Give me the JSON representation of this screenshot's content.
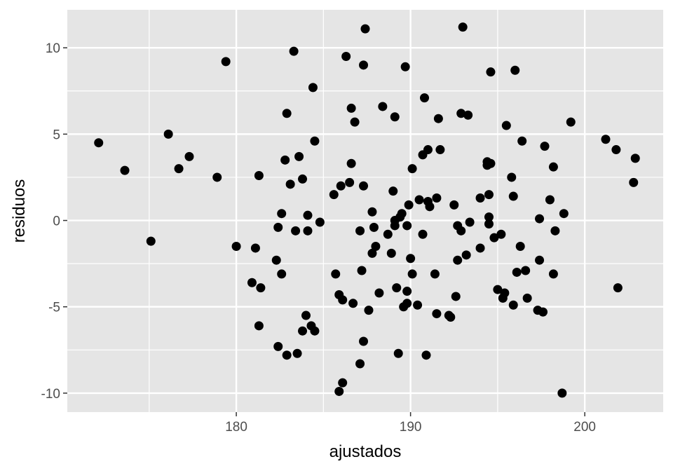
{
  "chart_data": {
    "type": "scatter",
    "title": "",
    "xlabel": "ajustados",
    "ylabel": "residuos",
    "xlim": [
      170.3,
      204.5
    ],
    "ylim": [
      -11.1,
      12.2
    ],
    "x_ticks": [
      180,
      190,
      200
    ],
    "x_tick_labels": [
      "180",
      "190",
      "200"
    ],
    "y_ticks": [
      -10,
      -5,
      0,
      5,
      10
    ],
    "y_tick_labels": [
      "-10",
      "-5",
      "0",
      "5",
      "10"
    ],
    "x_minor_ticks": [
      175,
      185,
      195
    ],
    "y_minor_ticks": [
      -7.5,
      -2.5,
      2.5,
      7.5
    ],
    "grid": true,
    "colors": {
      "panel": "#e5e5e5",
      "grid": "#ffffff",
      "point": "#000000"
    },
    "points": [
      [
        172.1,
        4.5
      ],
      [
        173.6,
        2.9
      ],
      [
        175.1,
        -1.2
      ],
      [
        176.1,
        5.0
      ],
      [
        176.7,
        3.0
      ],
      [
        177.3,
        3.7
      ],
      [
        178.9,
        2.5
      ],
      [
        179.4,
        9.2
      ],
      [
        180.0,
        -1.5
      ],
      [
        180.9,
        -3.6
      ],
      [
        181.1,
        -1.6
      ],
      [
        181.3,
        2.6
      ],
      [
        181.3,
        -6.1
      ],
      [
        181.4,
        -3.9
      ],
      [
        182.3,
        -2.3
      ],
      [
        182.4,
        -0.4
      ],
      [
        182.4,
        -7.3
      ],
      [
        182.6,
        0.4
      ],
      [
        182.6,
        -3.1
      ],
      [
        182.8,
        3.5
      ],
      [
        182.9,
        6.2
      ],
      [
        182.9,
        -7.8
      ],
      [
        183.1,
        2.1
      ],
      [
        183.3,
        9.8
      ],
      [
        183.4,
        -0.6
      ],
      [
        183.5,
        -7.7
      ],
      [
        183.6,
        3.7
      ],
      [
        183.8,
        2.4
      ],
      [
        183.8,
        -6.4
      ],
      [
        184.0,
        -5.5
      ],
      [
        184.1,
        -0.6
      ],
      [
        184.1,
        0.3
      ],
      [
        184.3,
        -6.1
      ],
      [
        184.4,
        7.7
      ],
      [
        184.5,
        -6.4
      ],
      [
        184.5,
        4.6
      ],
      [
        184.8,
        -0.1
      ],
      [
        185.6,
        1.5
      ],
      [
        185.7,
        -3.1
      ],
      [
        185.9,
        -4.3
      ],
      [
        185.9,
        -9.9
      ],
      [
        186.0,
        2.0
      ],
      [
        186.1,
        -4.6
      ],
      [
        186.1,
        -9.4
      ],
      [
        186.3,
        9.5
      ],
      [
        186.5,
        2.2
      ],
      [
        186.6,
        3.3
      ],
      [
        186.6,
        6.5
      ],
      [
        186.7,
        -4.8
      ],
      [
        186.8,
        5.7
      ],
      [
        187.1,
        -8.3
      ],
      [
        187.1,
        -0.6
      ],
      [
        187.2,
        -2.9
      ],
      [
        187.3,
        2.0
      ],
      [
        187.3,
        -7.0
      ],
      [
        187.3,
        9.0
      ],
      [
        187.4,
        11.1
      ],
      [
        187.6,
        -5.2
      ],
      [
        187.8,
        -1.9
      ],
      [
        187.8,
        0.5
      ],
      [
        187.9,
        -0.4
      ],
      [
        188.0,
        -1.5
      ],
      [
        188.2,
        -4.2
      ],
      [
        188.4,
        6.6
      ],
      [
        188.7,
        -0.8
      ],
      [
        188.9,
        -1.9
      ],
      [
        189.0,
        1.7
      ],
      [
        189.1,
        0.0
      ],
      [
        189.1,
        -0.3
      ],
      [
        189.1,
        6.0
      ],
      [
        189.2,
        -3.9
      ],
      [
        189.3,
        -7.7
      ],
      [
        189.4,
        0.2
      ],
      [
        189.5,
        0.4
      ],
      [
        189.6,
        -5.0
      ],
      [
        189.7,
        8.9
      ],
      [
        189.8,
        -4.1
      ],
      [
        189.8,
        -4.8
      ],
      [
        189.8,
        -0.3
      ],
      [
        189.9,
        0.9
      ],
      [
        190.0,
        -2.2
      ],
      [
        190.1,
        3.0
      ],
      [
        190.1,
        -3.1
      ],
      [
        190.4,
        -4.9
      ],
      [
        190.5,
        1.2
      ],
      [
        190.7,
        3.8
      ],
      [
        190.7,
        -0.8
      ],
      [
        190.8,
        7.1
      ],
      [
        190.9,
        -7.8
      ],
      [
        191.0,
        1.1
      ],
      [
        191.0,
        4.1
      ],
      [
        191.1,
        0.8
      ],
      [
        191.4,
        -3.1
      ],
      [
        191.5,
        1.3
      ],
      [
        191.5,
        -5.4
      ],
      [
        191.6,
        5.9
      ],
      [
        191.7,
        4.1
      ],
      [
        192.2,
        -5.5
      ],
      [
        192.3,
        -5.6
      ],
      [
        192.5,
        0.9
      ],
      [
        192.6,
        -4.4
      ],
      [
        192.7,
        -2.3
      ],
      [
        192.7,
        -0.3
      ],
      [
        192.9,
        6.2
      ],
      [
        192.9,
        -0.6
      ],
      [
        193.0,
        11.2
      ],
      [
        193.2,
        -2.0
      ],
      [
        193.3,
        6.1
      ],
      [
        193.4,
        -0.1
      ],
      [
        194.0,
        1.3
      ],
      [
        194.0,
        -1.6
      ],
      [
        194.4,
        3.2
      ],
      [
        194.4,
        3.4
      ],
      [
        194.5,
        0.2
      ],
      [
        194.5,
        -0.2
      ],
      [
        194.5,
        1.5
      ],
      [
        194.6,
        3.3
      ],
      [
        194.6,
        8.6
      ],
      [
        194.8,
        -1.0
      ],
      [
        195.0,
        -4.0
      ],
      [
        195.2,
        -0.8
      ],
      [
        195.3,
        -4.5
      ],
      [
        195.4,
        -4.2
      ],
      [
        195.5,
        5.5
      ],
      [
        195.8,
        2.5
      ],
      [
        195.9,
        1.4
      ],
      [
        195.9,
        -4.9
      ],
      [
        196.0,
        8.7
      ],
      [
        196.1,
        -3.0
      ],
      [
        196.3,
        -1.5
      ],
      [
        196.4,
        4.6
      ],
      [
        196.6,
        -2.9
      ],
      [
        196.7,
        -4.5
      ],
      [
        197.3,
        -5.2
      ],
      [
        197.4,
        0.1
      ],
      [
        197.4,
        -2.3
      ],
      [
        197.6,
        -5.3
      ],
      [
        197.7,
        4.3
      ],
      [
        198.0,
        1.2
      ],
      [
        198.2,
        -3.1
      ],
      [
        198.2,
        3.1
      ],
      [
        198.3,
        -0.6
      ],
      [
        198.7,
        -10.0
      ],
      [
        198.8,
        0.4
      ],
      [
        199.2,
        5.7
      ],
      [
        201.2,
        4.7
      ],
      [
        201.8,
        4.1
      ],
      [
        201.9,
        -3.9
      ],
      [
        202.8,
        2.2
      ],
      [
        202.9,
        3.6
      ]
    ]
  }
}
